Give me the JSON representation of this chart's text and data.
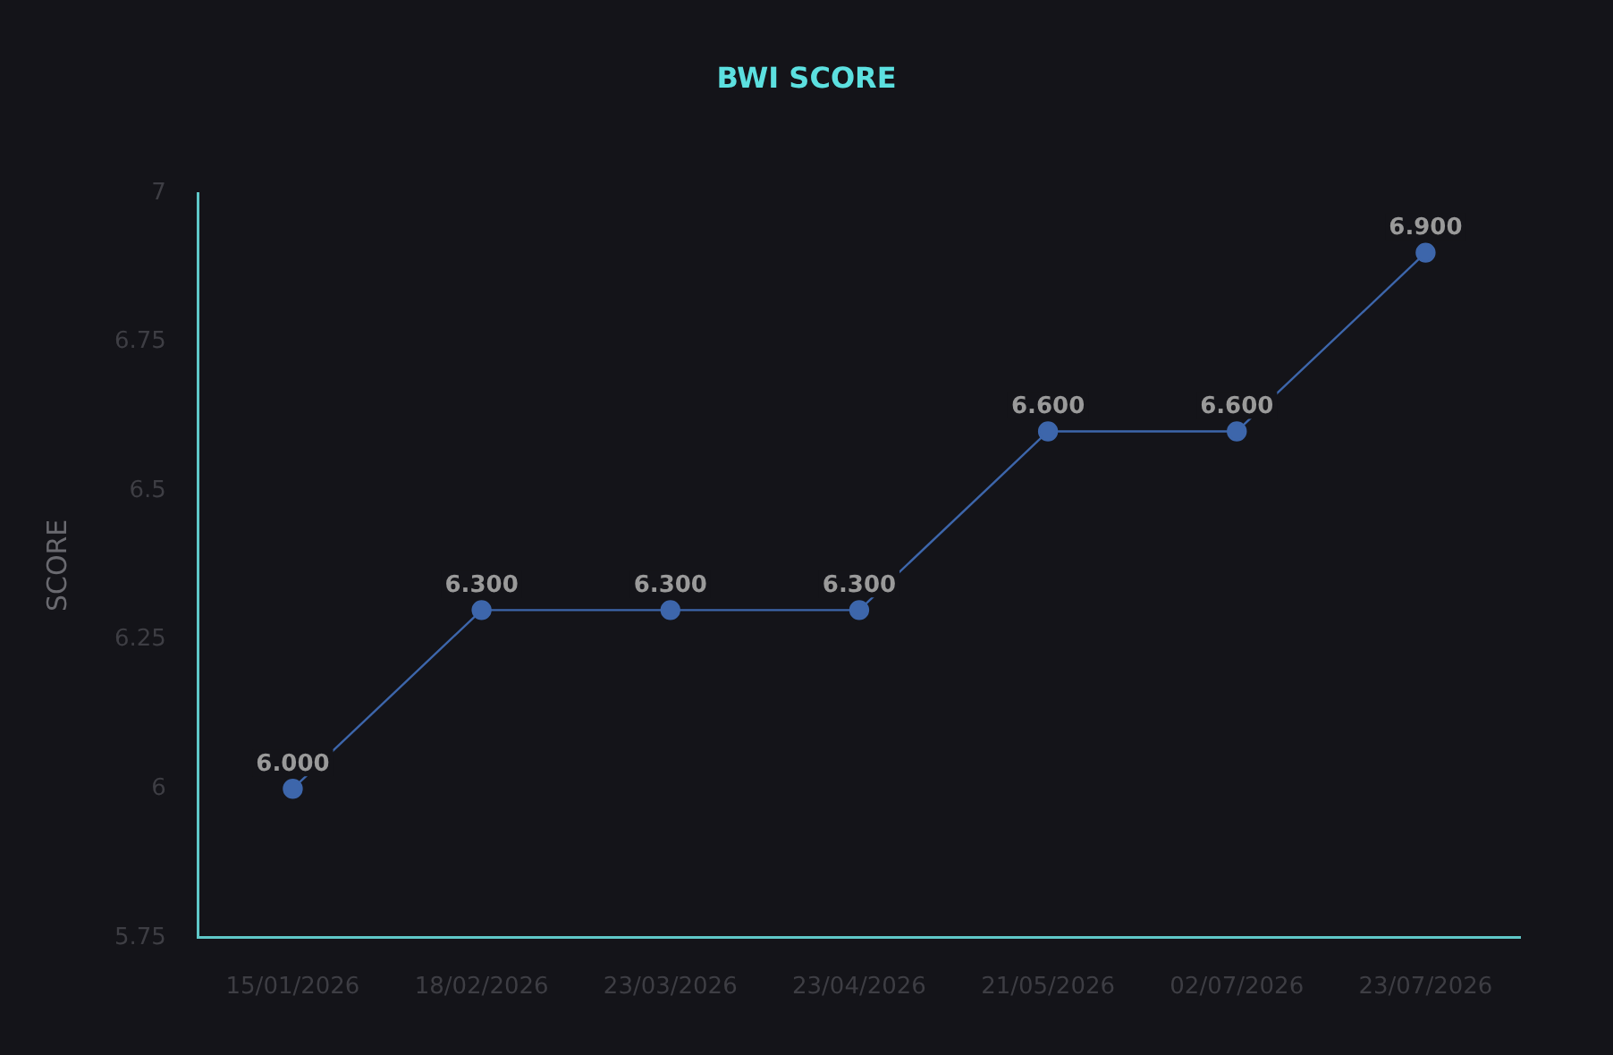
{
  "chart_data": {
    "type": "line",
    "title": "BWI SCORE",
    "ylabel": "SCORE",
    "categories": [
      "15/01/2026",
      "18/02/2026",
      "23/03/2026",
      "23/04/2026",
      "21/05/2026",
      "02/07/2026",
      "23/07/2026"
    ],
    "series": [
      {
        "color": "#3d66ab",
        "values": [
          6.0,
          6.3,
          6.3,
          6.3,
          6.6,
          6.6,
          6.9
        ],
        "value_labels": [
          "6.000",
          "6.300",
          "6.300",
          "6.300",
          "6.600",
          "6.600",
          "6.900"
        ]
      }
    ],
    "ylim": [
      5.75,
      7
    ],
    "yticks": [
      5.75,
      6,
      6.25,
      6.5,
      6.75,
      7
    ],
    "grid": false,
    "legend": false,
    "marker": "circle",
    "line_style": "solid"
  }
}
